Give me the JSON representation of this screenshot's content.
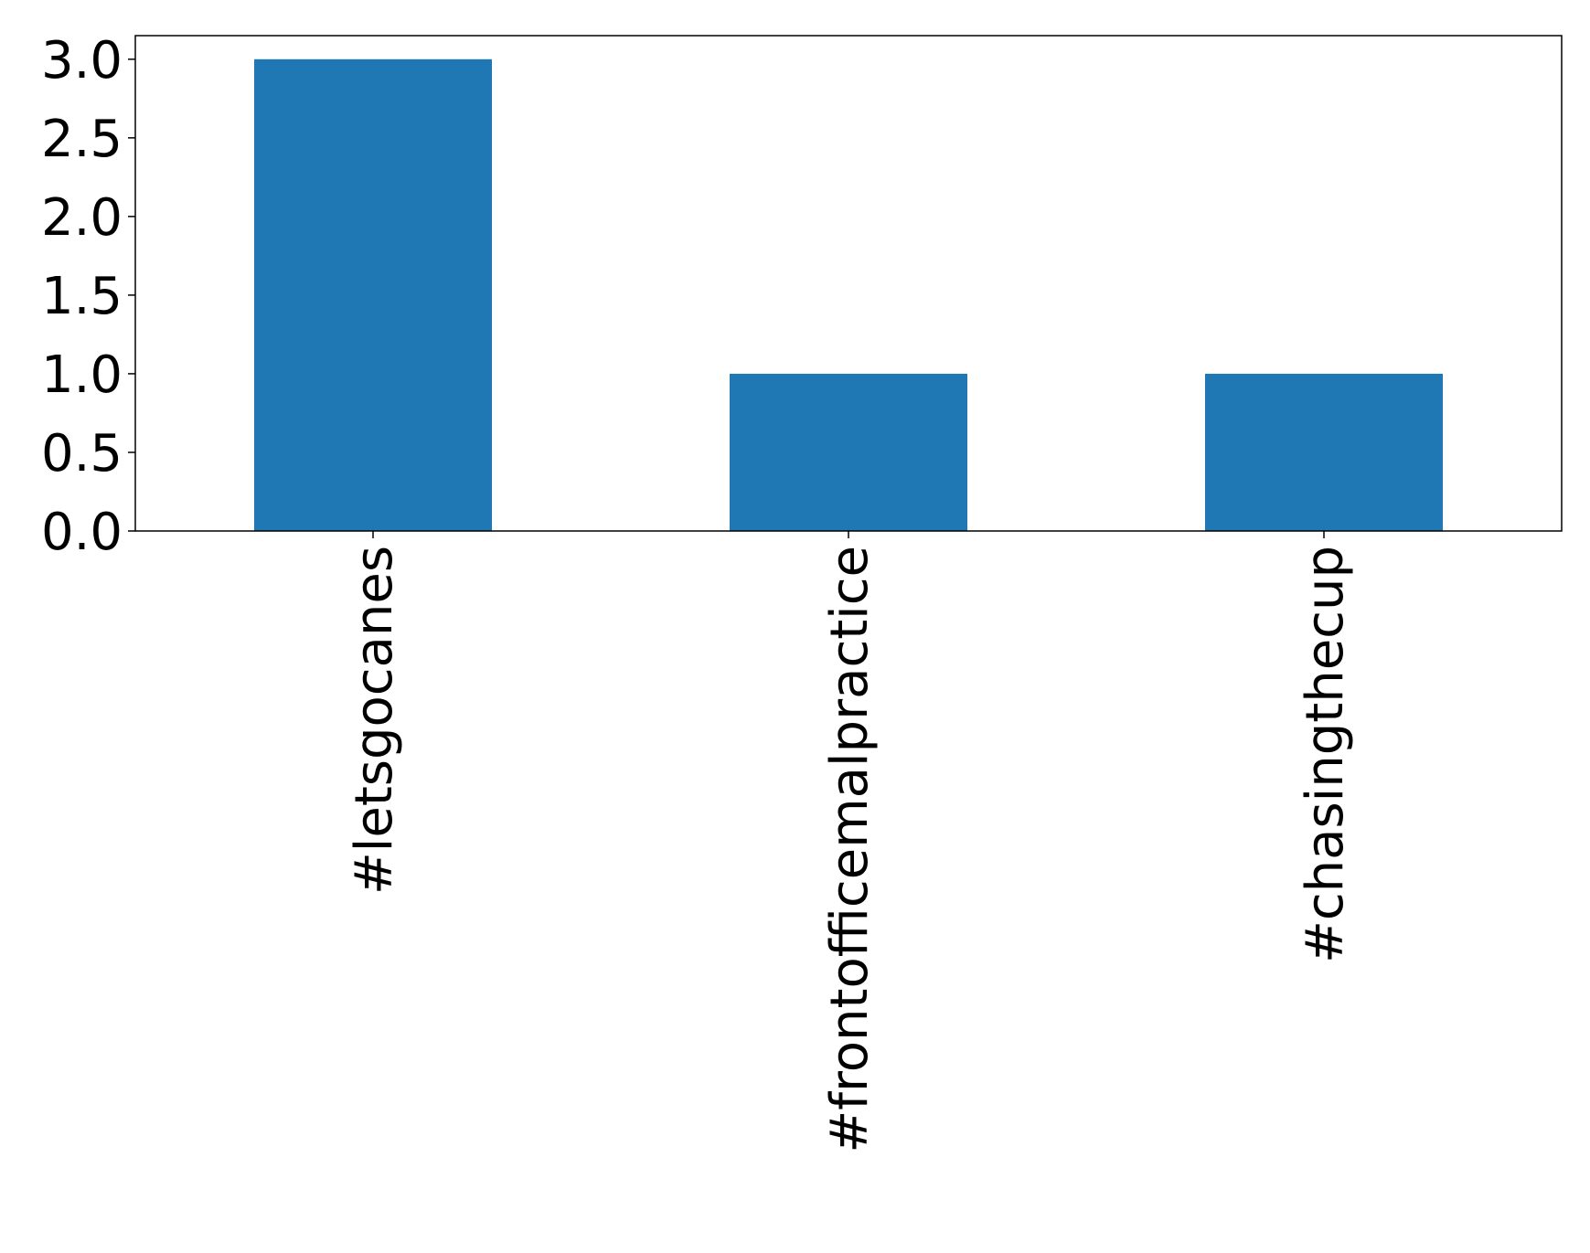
{
  "chart_data": {
    "type": "bar",
    "categories": [
      "#letsgocanes",
      "#frontofficemalpractice",
      "#chasingthecup"
    ],
    "values": [
      3,
      1,
      1
    ],
    "color": "#1f77b4",
    "ylim": [
      0,
      3.15
    ],
    "yticks": [
      {
        "value": 0,
        "label": "0.0"
      },
      0.5,
      {
        "value": 1,
        "label": "1.0"
      },
      1.5,
      {
        "value": 2,
        "label": "2.0"
      },
      2.5,
      {
        "value": 3,
        "label": "3.0"
      }
    ],
    "grid": false
  }
}
